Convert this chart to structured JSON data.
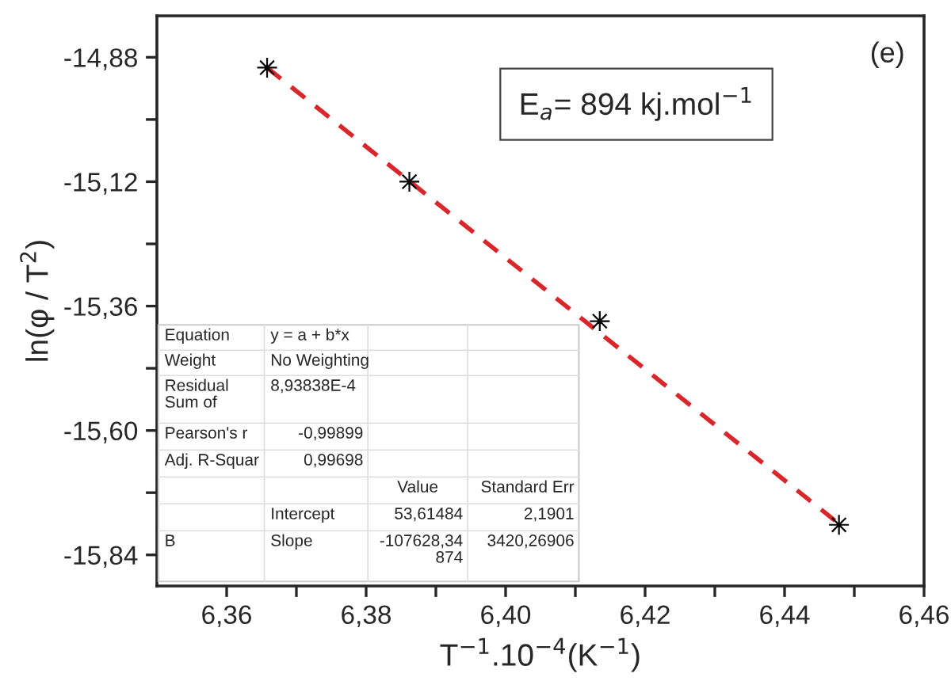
{
  "chart_data": {
    "type": "scatter",
    "xlabel": "T$^{−1}$.10$^{−4}$(K$^{−1}$)",
    "ylabel": "ln(φ / T$^{2}$)",
    "series": [
      {
        "color": "#000000",
        "marker": "star",
        "x": [
          6.3658,
          6.3862,
          6.4135,
          6.4478
        ],
        "values": [
          -14.9,
          -15.12,
          -15.389,
          -15.782
        ]
      },
      {
        "type": "line",
        "color": "#d9262b",
        "line_style": "dashed",
        "marker": "none",
        "x": [
          6.3658,
          6.4478
        ],
        "values": [
          -14.9,
          -15.78
        ]
      }
    ],
    "xlim": [
      6.35,
      6.46
    ],
    "ylim": [
      -15.9,
      -14.8
    ],
    "xticks": [
      {
        "value": 6.36,
        "label": "6,36"
      },
      {
        "value": 6.37,
        "label": null
      },
      {
        "value": 6.38,
        "label": "6,38"
      },
      {
        "value": 6.39,
        "label": null
      },
      {
        "value": 6.4,
        "label": "6,40"
      },
      {
        "value": 6.41,
        "label": null
      },
      {
        "value": 6.42,
        "label": "6,42"
      },
      {
        "value": 6.43,
        "label": null
      },
      {
        "value": 6.44,
        "label": "6,44"
      },
      {
        "value": 6.45,
        "label": null
      },
      {
        "value": 6.46,
        "label": "6,46"
      }
    ],
    "yticks": [
      {
        "value": -14.88,
        "label": "-14,88"
      },
      {
        "value": -15.0,
        "label": null
      },
      {
        "value": -15.12,
        "label": "-15,12"
      },
      {
        "value": -15.24,
        "label": null
      },
      {
        "value": -15.36,
        "label": "-15,36"
      },
      {
        "value": -15.48,
        "label": null
      },
      {
        "value": -15.6,
        "label": "-15,60"
      },
      {
        "value": -15.72,
        "label": null
      },
      {
        "value": -15.84,
        "label": "-15,84"
      }
    ],
    "grid": false,
    "legend": false,
    "annotations": [
      "(e)",
      "E$_{a}$= 894 kj.mol$^{−1}$",
      "Equation",
      "y = a + b*x",
      "Weight",
      "No Weighting",
      "Residual\nSum of",
      "8,93838E-4",
      "Pearson's r",
      "-0,99899",
      "Adj. R-Squar",
      "0,99698",
      "Value",
      "Standard Err",
      "Intercept",
      "53,61484",
      "2,1901",
      "B",
      "Slope",
      "-107628,34\n874",
      "3420,26906"
    ]
  }
}
